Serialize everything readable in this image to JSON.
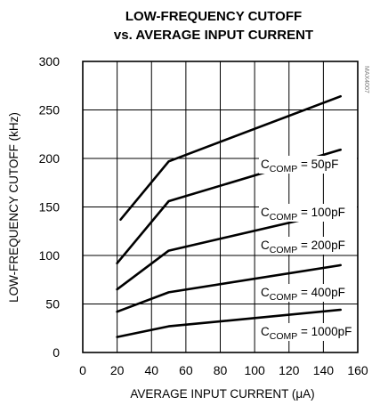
{
  "chart_data": {
    "type": "line",
    "title": [
      "LOW-FREQUENCY CUTOFF",
      "vs. AVERAGE INPUT CURRENT"
    ],
    "xlabel": "AVERAGE INPUT CURRENT (μA)",
    "ylabel": "LOW-FREQUENCY CUTOFF (kHz)",
    "xlim": [
      0,
      160
    ],
    "ylim": [
      0,
      300
    ],
    "xticks": [
      "0",
      "20",
      "40",
      "60",
      "80",
      "100",
      "120",
      "140",
      "160"
    ],
    "yticks": [
      "0",
      "50",
      "100",
      "150",
      "200",
      "250",
      "300"
    ],
    "grid": true,
    "figure_id": "MAX4007",
    "series": [
      {
        "label_main": "C",
        "label_sub": "COMP",
        "label_rest": " = 50pF",
        "x": [
          22,
          50,
          150
        ],
        "y": [
          137,
          197,
          264
        ]
      },
      {
        "label_main": "C",
        "label_sub": "COMP",
        "label_rest": " = 100pF",
        "x": [
          20,
          50,
          150
        ],
        "y": [
          92,
          156,
          209
        ]
      },
      {
        "label_main": "C",
        "label_sub": "COMP",
        "label_rest": " = 200pF",
        "x": [
          20,
          50,
          150
        ],
        "y": [
          65,
          105,
          146
        ]
      },
      {
        "label_main": "C",
        "label_sub": "COMP",
        "label_rest": " = 400pF",
        "x": [
          20,
          50,
          150
        ],
        "y": [
          42,
          62,
          90
        ]
      },
      {
        "label_main": "C",
        "label_sub": "COMP",
        "label_rest": " = 1000pF",
        "x": [
          20,
          50,
          150
        ],
        "y": [
          16,
          27,
          44
        ]
      }
    ]
  }
}
